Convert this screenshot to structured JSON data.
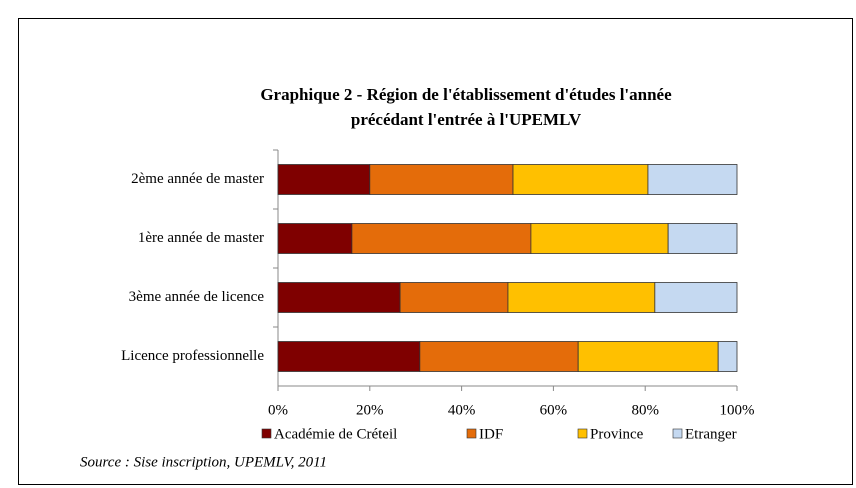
{
  "chart_data": {
    "type": "stacked_barh",
    "title": [
      "Graphique  2 - Région de l'établissement d'études l'année",
      "précédant  l'entrée à l'UPEMLV"
    ],
    "categories": [
      "2ème année de master",
      "1ère année de master",
      "3ème année de licence",
      "Licence professionnelle"
    ],
    "series": [
      {
        "name": "Académie de Créteil",
        "color": "#7f0000",
        "values": [
          20.0,
          16.1,
          26.6,
          30.9
        ]
      },
      {
        "name": "IDF",
        "color": "#e46c0a",
        "values": [
          31.2,
          39.0,
          23.5,
          34.5
        ]
      },
      {
        "name": "Province",
        "color": "#ffc000",
        "values": [
          29.4,
          29.9,
          32.0,
          30.5
        ]
      },
      {
        "name": "Etranger",
        "color": "#c5d9f1",
        "values": [
          19.4,
          15.0,
          17.9,
          4.1
        ]
      }
    ],
    "xlim": [
      0,
      100
    ],
    "xticks": [
      {
        "value": 0,
        "label": "0%"
      },
      {
        "value": 20,
        "label": "20%"
      },
      {
        "value": 40,
        "label": "40%"
      },
      {
        "value": 60,
        "label": "60%"
      },
      {
        "value": 80,
        "label": "80%"
      },
      {
        "value": 100,
        "label": "100%"
      }
    ],
    "source": "Source : Sise inscription, UPEMLV, 2011"
  }
}
